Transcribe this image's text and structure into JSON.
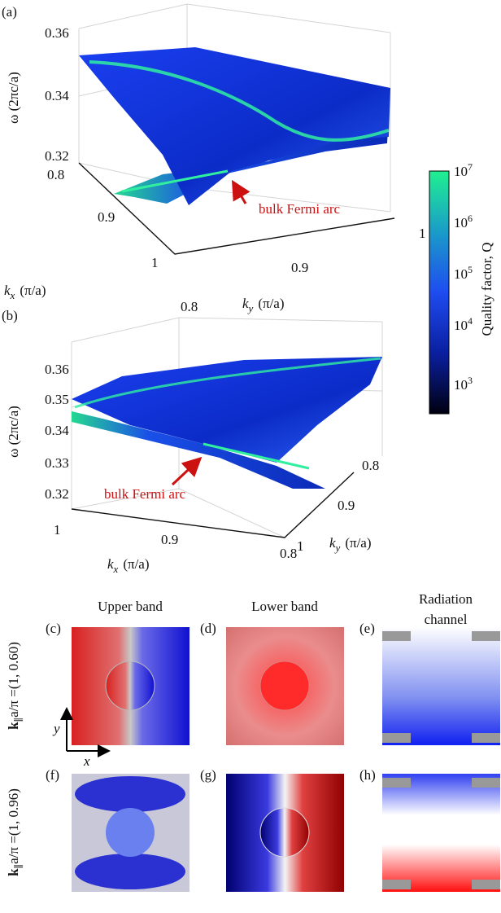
{
  "panel_a": {
    "label": "(a)",
    "z_ticks": [
      "0.36",
      "0.34",
      "0.32"
    ],
    "z_label": "ω (2πc/a)",
    "kx_ticks": [
      "0.8",
      "0.9",
      "1"
    ],
    "kx_label": {
      "symbol": "k",
      "subscript": "x",
      "unit": "(π/a)"
    },
    "ky_ticks": [
      "0.8",
      "0.9",
      "1"
    ],
    "ky_label": {
      "symbol": "k",
      "subscript": "y",
      "unit": "(π/a)"
    },
    "annotation": "bulk Fermi arc"
  },
  "colorbar": {
    "ticks": [
      {
        "base": "10",
        "exponent": "7"
      },
      {
        "base": "10",
        "exponent": "6"
      },
      {
        "base": "10",
        "exponent": "5"
      },
      {
        "base": "10",
        "exponent": "4"
      },
      {
        "base": "10",
        "exponent": "3"
      }
    ],
    "label": "Quality factor, Q"
  },
  "panel_b": {
    "label": "(b)",
    "z_ticks": [
      "0.36",
      "0.35",
      "0.34",
      "0.33",
      "0.32"
    ],
    "z_label": "ω (2πc/a)",
    "kx_ticks": [
      "1",
      "0.9",
      "0.8"
    ],
    "kx_label": {
      "symbol": "k",
      "subscript": "x",
      "unit": "(π/a)"
    },
    "ky_ticks": [
      "0.8",
      "0.9",
      "1"
    ],
    "ky_label": {
      "symbol": "k",
      "subscript": "y",
      "unit": "(π/a)"
    },
    "annotation": "bulk Fermi arc"
  },
  "field_maps": {
    "column_headers": [
      [
        "Upper band"
      ],
      [
        "Lower band"
      ],
      [
        "Radiation",
        "channel"
      ]
    ],
    "row_labels": [
      {
        "symbol": "k",
        "subscript": "∥",
        "rest": "a/π =(1, 0.60)"
      },
      {
        "symbol": "k",
        "subscript": "∥",
        "rest": "a/π =(1, 0.96)"
      }
    ],
    "panel_labels": [
      "(c)",
      "(d)",
      "(e)",
      "(f)",
      "(g)",
      "(h)"
    ],
    "x_axis": "x",
    "y_axis": "y"
  }
}
